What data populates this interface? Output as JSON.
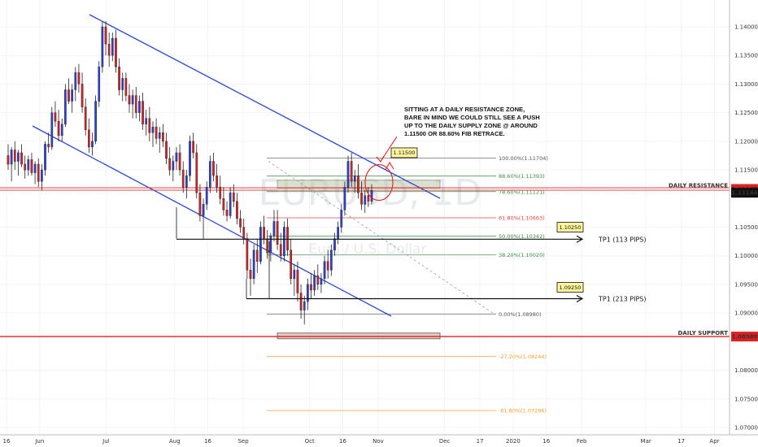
{
  "chart_data": {
    "type": "candlestick",
    "watermark": {
      "symbol": "EURUSD, 1D",
      "description": "Euro / U.S. Dollar"
    },
    "y_axis": {
      "range": [
        1.069,
        1.1445
      ],
      "ticks": [
        "1.14000",
        "1.13500",
        "1.13000",
        "1.12500",
        "1.12000",
        "1.11500",
        "1.10500",
        "1.10000",
        "1.09500",
        "1.09000",
        "1.08000",
        "1.07500",
        "1.07000"
      ]
    },
    "x_axis": {
      "ticks": [
        {
          "label": "16",
          "day": 0
        },
        {
          "label": "Jun",
          "day": 15
        },
        {
          "label": "Jul",
          "day": 45
        },
        {
          "label": "Aug",
          "day": 76
        },
        {
          "label": "16",
          "day": 91
        },
        {
          "label": "Sep",
          "day": 107
        },
        {
          "label": "Oct",
          "day": 137
        },
        {
          "label": "16",
          "day": 152
        },
        {
          "label": "Nov",
          "day": 168
        },
        {
          "label": "Dec",
          "day": 198
        },
        {
          "label": "17",
          "day": 214
        },
        {
          "label": "2020",
          "day": 229
        },
        {
          "label": "16",
          "day": 244
        },
        {
          "label": "Feb",
          "day": 260
        },
        {
          "label": "Mar",
          "day": 289
        },
        {
          "label": "17",
          "day": 305
        },
        {
          "label": "Apr",
          "day": 320
        },
        {
          "label": "16",
          "day": 335
        }
      ]
    },
    "price_badges": [
      {
        "label": "DAILY RESISTANCE",
        "price": 1.11167,
        "value": "1.11167",
        "color": "#e02020"
      },
      {
        "label": "",
        "price": 1.11144,
        "value": "1.11144",
        "color": "#111111"
      },
      {
        "label": "DAILY SUPPORT",
        "price": 1.08589,
        "value": "1.08589",
        "color": "#e02020"
      }
    ],
    "fibonacci": [
      {
        "label": "100.00%(1.11704)",
        "price": 1.11704,
        "color": "#555555"
      },
      {
        "label": "88.60%(1.11393)",
        "price": 1.11393,
        "color": "#3c8d3c"
      },
      {
        "label": "78.60%(1.11121)",
        "price": 1.11121,
        "color": "#3c8d3c"
      },
      {
        "label": "61.80%(1.10663)",
        "price": 1.10663,
        "color": "#e04646"
      },
      {
        "label": "50.00%(1.10342)",
        "price": 1.10342,
        "color": "#3c8d3c"
      },
      {
        "label": "38.20%(1.10020)",
        "price": 1.1002,
        "color": "#3c8d3c"
      },
      {
        "label": "0.00%(1.08980)",
        "price": 1.0898,
        "color": "#555555"
      },
      {
        "label": "-27.20%(1.08244)",
        "price": 1.08244,
        "color": "#f0a030"
      },
      {
        "label": "-61.80%(1.07296)",
        "price": 1.07296,
        "color": "#f0a030"
      }
    ],
    "annotations": {
      "note": [
        "SITTING AT A DAILY RESISTANCE ZONE,",
        "BARE IN MIND WE COULD STILL SEE A PUSH",
        "UP TO THE DAILY SUPPLY ZONE @ AROUND",
        "1.11500 OR 88.60% FIB RETRACE."
      ],
      "tags": [
        {
          "text": "1.11500",
          "price": 1.115
        },
        {
          "text": "1.10250",
          "price": 1.1025
        },
        {
          "text": "1.09250",
          "price": 1.0925
        }
      ],
      "targets": [
        {
          "text": "TP1 (113 PIPS)",
          "price": 1.1029
        },
        {
          "text": "TP1 (213 PIPS)",
          "price": 1.0925
        }
      ]
    },
    "candles": [
      [
        1.1175,
        1.1195,
        1.115,
        1.116
      ],
      [
        1.116,
        1.119,
        1.113,
        1.1185
      ],
      [
        1.1185,
        1.12,
        1.115,
        1.1165
      ],
      [
        1.1165,
        1.1185,
        1.114,
        1.118
      ],
      [
        1.118,
        1.1195,
        1.1155,
        1.116
      ],
      [
        1.116,
        1.1175,
        1.1135,
        1.115
      ],
      [
        1.115,
        1.1175,
        1.114,
        1.1168
      ],
      [
        1.1168,
        1.118,
        1.114,
        1.1145
      ],
      [
        1.1145,
        1.1165,
        1.1125,
        1.116
      ],
      [
        1.116,
        1.117,
        1.112,
        1.113
      ],
      [
        1.113,
        1.116,
        1.1115,
        1.115
      ],
      [
        1.115,
        1.12,
        1.114,
        1.1195
      ],
      [
        1.1195,
        1.1215,
        1.118,
        1.119
      ],
      [
        1.119,
        1.126,
        1.1185,
        1.125
      ],
      [
        1.125,
        1.127,
        1.1225,
        1.1235
      ],
      [
        1.1235,
        1.1255,
        1.12,
        1.121
      ],
      [
        1.121,
        1.124,
        1.12,
        1.123
      ],
      [
        1.123,
        1.13,
        1.1225,
        1.129
      ],
      [
        1.129,
        1.131,
        1.1265,
        1.127
      ],
      [
        1.127,
        1.13,
        1.125,
        1.129
      ],
      [
        1.129,
        1.133,
        1.127,
        1.132
      ],
      [
        1.132,
        1.1335,
        1.1285,
        1.13
      ],
      [
        1.13,
        1.132,
        1.125,
        1.126
      ],
      [
        1.126,
        1.1275,
        1.121,
        1.122
      ],
      [
        1.122,
        1.124,
        1.118,
        1.119
      ],
      [
        1.119,
        1.1215,
        1.1175,
        1.12
      ],
      [
        1.12,
        1.128,
        1.1195,
        1.127
      ],
      [
        1.127,
        1.134,
        1.126,
        1.133
      ],
      [
        1.133,
        1.141,
        1.132,
        1.14
      ],
      [
        1.14,
        1.141,
        1.135,
        1.137
      ],
      [
        1.137,
        1.139,
        1.133,
        1.135
      ],
      [
        1.135,
        1.139,
        1.134,
        1.138
      ],
      [
        1.138,
        1.1395,
        1.132,
        1.133
      ],
      [
        1.133,
        1.1345,
        1.128,
        1.129
      ],
      [
        1.129,
        1.132,
        1.127,
        1.131
      ],
      [
        1.131,
        1.132,
        1.127,
        1.128
      ],
      [
        1.128,
        1.13,
        1.125,
        1.1265
      ],
      [
        1.1265,
        1.129,
        1.124,
        1.128
      ],
      [
        1.128,
        1.1295,
        1.124,
        1.125
      ],
      [
        1.125,
        1.128,
        1.1235,
        1.127
      ],
      [
        1.127,
        1.1285,
        1.122,
        1.123
      ],
      [
        1.123,
        1.1255,
        1.121,
        1.124
      ],
      [
        1.124,
        1.126,
        1.12,
        1.1215
      ],
      [
        1.1215,
        1.1235,
        1.119,
        1.1225
      ],
      [
        1.1225,
        1.124,
        1.1195,
        1.1205
      ],
      [
        1.1205,
        1.1225,
        1.118,
        1.1215
      ],
      [
        1.1215,
        1.123,
        1.119,
        1.12
      ],
      [
        1.12,
        1.1215,
        1.116,
        1.117
      ],
      [
        1.117,
        1.119,
        1.114,
        1.115
      ],
      [
        1.115,
        1.1175,
        1.113,
        1.1165
      ],
      [
        1.1165,
        1.119,
        1.115,
        1.118
      ],
      [
        1.118,
        1.1195,
        1.114,
        1.115
      ],
      [
        1.115,
        1.1165,
        1.111,
        1.112
      ],
      [
        1.112,
        1.115,
        1.11,
        1.114
      ],
      [
        1.114,
        1.121,
        1.113,
        1.12
      ],
      [
        1.12,
        1.1215,
        1.117,
        1.118
      ],
      [
        1.118,
        1.1195,
        1.11,
        1.111
      ],
      [
        1.111,
        1.1125,
        1.106,
        1.107
      ],
      [
        1.107,
        1.11,
        1.103,
        1.109
      ],
      [
        1.109,
        1.113,
        1.108,
        1.112
      ],
      [
        1.112,
        1.1175,
        1.111,
        1.1165
      ],
      [
        1.1165,
        1.118,
        1.113,
        1.114
      ],
      [
        1.114,
        1.116,
        1.111,
        1.112
      ],
      [
        1.112,
        1.114,
        1.109,
        1.11
      ],
      [
        1.11,
        1.112,
        1.107,
        1.108
      ],
      [
        1.108,
        1.1095,
        1.106,
        1.107
      ],
      [
        1.107,
        1.112,
        1.1065,
        1.111
      ],
      [
        1.111,
        1.1125,
        1.1085,
        1.1095
      ],
      [
        1.1095,
        1.111,
        1.1055,
        1.1065
      ],
      [
        1.1065,
        1.108,
        1.104,
        1.105
      ],
      [
        1.105,
        1.1065,
        1.102,
        1.103
      ],
      [
        1.103,
        1.104,
        1.096,
        1.0975
      ],
      [
        1.0975,
        1.0995,
        1.093,
        1.096
      ],
      [
        1.096,
        1.102,
        1.095,
        1.101
      ],
      [
        1.101,
        1.103,
        1.097,
        1.099
      ],
      [
        1.099,
        1.106,
        1.0985,
        1.105
      ],
      [
        1.105,
        1.107,
        1.102,
        1.103
      ],
      [
        1.103,
        1.1045,
        1.0995,
        1.1005
      ],
      [
        1.1005,
        1.104,
        1.099,
        1.1035
      ],
      [
        1.1035,
        1.108,
        1.1025,
        1.106
      ],
      [
        1.106,
        1.108,
        1.101,
        1.102
      ],
      [
        1.102,
        1.104,
        1.099,
        1.1
      ],
      [
        1.1,
        1.106,
        1.099,
        1.105
      ],
      [
        1.105,
        1.1065,
        1.1,
        1.101
      ],
      [
        1.101,
        1.103,
        1.095,
        1.096
      ],
      [
        1.096,
        1.0985,
        1.093,
        1.0975
      ],
      [
        1.0975,
        1.099,
        1.092,
        1.0935
      ],
      [
        1.0935,
        1.095,
        1.089,
        1.0905
      ],
      [
        1.0905,
        1.093,
        1.088,
        1.092
      ],
      [
        1.092,
        1.096,
        1.0905,
        1.095
      ],
      [
        1.095,
        1.097,
        1.0925,
        1.094
      ],
      [
        1.094,
        1.0975,
        1.093,
        1.0965
      ],
      [
        1.0965,
        1.0985,
        1.094,
        1.095
      ],
      [
        1.095,
        1.097,
        1.0935,
        1.096
      ],
      [
        1.096,
        1.1,
        1.095,
        1.099
      ],
      [
        1.099,
        1.101,
        1.096,
        1.0975
      ],
      [
        1.0975,
        1.102,
        1.0965,
        1.101
      ],
      [
        1.101,
        1.104,
        1.1,
        1.103
      ],
      [
        1.103,
        1.106,
        1.102,
        1.105
      ],
      [
        1.105,
        1.109,
        1.104,
        1.108
      ],
      [
        1.108,
        1.113,
        1.107,
        1.112
      ],
      [
        1.112,
        1.1175,
        1.111,
        1.1165
      ],
      [
        1.1165,
        1.118,
        1.112,
        1.113
      ],
      [
        1.113,
        1.115,
        1.111,
        1.114
      ],
      [
        1.114,
        1.116,
        1.11,
        1.111
      ],
      [
        1.111,
        1.113,
        1.108,
        1.109
      ],
      [
        1.109,
        1.1115,
        1.1075,
        1.1105
      ],
      [
        1.1105,
        1.112,
        1.1085,
        1.1095
      ],
      [
        1.1095,
        1.1125,
        1.109,
        1.1114
      ]
    ]
  }
}
